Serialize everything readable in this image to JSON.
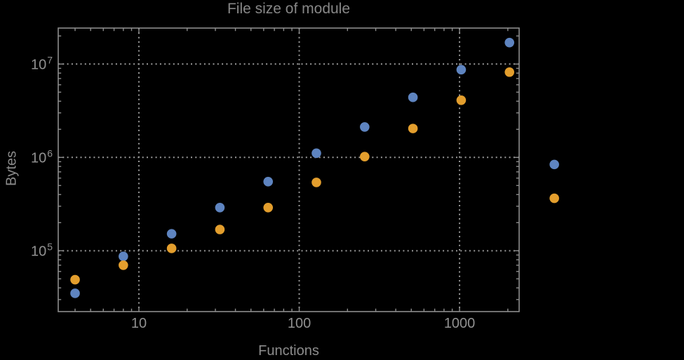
{
  "figure": {
    "background_color": "#000000",
    "frame_color": "#8d8d8d",
    "grid_color": "#9a9a9a",
    "text_color": "#8c8c8c",
    "tick_label_color": "#919191"
  },
  "chart_data": {
    "type": "scatter",
    "title": "File size of module",
    "xlabel": "Functions",
    "ylabel": "Bytes",
    "x_scale": "log",
    "y_scale": "log",
    "grid": "dotted lines at decade ticks, both axes",
    "legend_position": "none (two unlabeled series markers drawn outside right edge of frame)",
    "xlim": [
      3.14,
      2353
    ],
    "ylim": [
      22300,
      24300000
    ],
    "x_ticks": [
      {
        "value": 10,
        "label": "10"
      },
      {
        "value": 100,
        "label": "100"
      },
      {
        "value": 1000,
        "label": "1000"
      }
    ],
    "y_ticks": [
      {
        "value": 100000,
        "mantissa": "10",
        "exponent": "5"
      },
      {
        "value": 1000000,
        "mantissa": "10",
        "exponent": "6"
      },
      {
        "value": 10000000,
        "mantissa": "10",
        "exponent": "7"
      }
    ],
    "x": [
      4,
      8,
      16,
      32,
      64,
      128,
      256,
      512,
      1024,
      2048
    ],
    "series": [
      {
        "name": "series-blue",
        "color": "#5e84c0",
        "values": [
          35000,
          87000,
          152000,
          290000,
          550000,
          1110000,
          2120000,
          4400000,
          8700000,
          17000000
        ]
      },
      {
        "name": "series-orange",
        "color": "#e39e2d",
        "values": [
          49000,
          70000,
          106000,
          169000,
          290000,
          540000,
          1020000,
          2040000,
          4100000,
          8200000
        ]
      }
    ],
    "extra_markers_outside_frame": [
      {
        "series": "series-blue",
        "x": 3900,
        "y": 840000
      },
      {
        "series": "series-orange",
        "x": 3900,
        "y": 365000
      }
    ]
  }
}
